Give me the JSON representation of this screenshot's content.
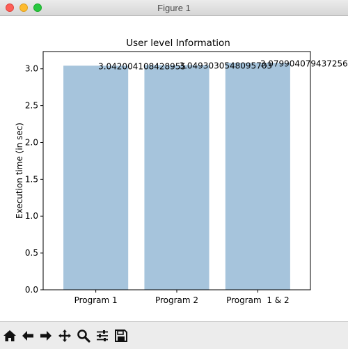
{
  "window": {
    "title": "Figure 1"
  },
  "chart_data": {
    "type": "bar",
    "title": "User level Information",
    "xlabel": "",
    "ylabel": "Execution time (in sec)",
    "categories": [
      "Program 1",
      "Program 2",
      "Program  1 & 2"
    ],
    "values": [
      3.042004108428955,
      3.0493030548095703,
      3.079904079437256
    ],
    "value_labels": [
      "3.042004108428955",
      "3.0493030548095703",
      "3.079904079437256"
    ],
    "ylim": [
      0,
      3.234
    ],
    "yticks": [
      0.0,
      0.5,
      1.0,
      1.5,
      2.0,
      2.5,
      3.0
    ],
    "ytick_labels": [
      "0.0",
      "0.5",
      "1.0",
      "1.5",
      "2.0",
      "2.5",
      "3.0"
    ],
    "grid": false,
    "bar_color": "#a6c4dc"
  },
  "toolbar": {
    "buttons": [
      {
        "name": "home-icon"
      },
      {
        "name": "back-arrow-icon"
      },
      {
        "name": "forward-arrow-icon"
      },
      {
        "name": "pan-icon"
      },
      {
        "name": "zoom-icon"
      },
      {
        "name": "configure-subplots-icon"
      },
      {
        "name": "save-icon"
      }
    ]
  }
}
